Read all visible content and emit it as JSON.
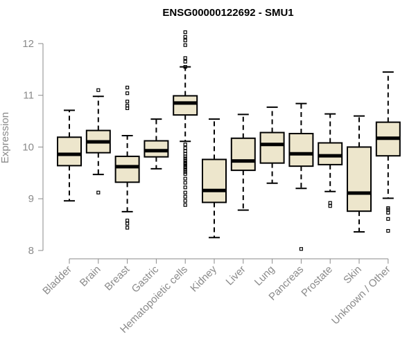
{
  "chart_data": {
    "type": "boxplot",
    "title": "ENSG00000122692 - SMU1",
    "xlabel": "",
    "ylabel": "Expression",
    "ylim": [
      8,
      12.2
    ],
    "yticks": [
      8,
      9,
      10,
      11,
      12
    ],
    "box_color": "#ede6cc",
    "categories": [
      "Bladder",
      "Brain",
      "Breast",
      "Gastric",
      "Hematopoietic cells",
      "Kidney",
      "Liver",
      "Lung",
      "Pancreas",
      "Prostate",
      "Skin",
      "Unknown / Other"
    ],
    "series": [
      {
        "name": "Bladder",
        "whisker_low": 8.96,
        "q1": 9.64,
        "median": 9.86,
        "q3": 10.19,
        "whisker_high": 10.71,
        "outliers": []
      },
      {
        "name": "Brain",
        "whisker_low": 9.47,
        "q1": 9.89,
        "median": 10.1,
        "q3": 10.32,
        "whisker_high": 10.98,
        "outliers": [
          9.12,
          11.1
        ]
      },
      {
        "name": "Breast",
        "whisker_low": 8.75,
        "q1": 9.32,
        "median": 9.62,
        "q3": 9.82,
        "whisker_high": 10.22,
        "outliers": [
          8.44,
          8.52,
          8.58,
          10.75,
          10.8,
          10.88,
          11.04,
          11.15
        ]
      },
      {
        "name": "Gastric",
        "whisker_low": 9.58,
        "q1": 9.81,
        "median": 9.93,
        "q3": 10.12,
        "whisker_high": 10.54,
        "outliers": []
      },
      {
        "name": "Hematopoietic cells",
        "whisker_low": 10.11,
        "q1": 10.62,
        "median": 10.85,
        "q3": 10.99,
        "whisker_high": 11.55,
        "outliers": [
          8.88,
          8.96,
          9.04,
          9.12,
          9.22,
          9.31,
          9.39,
          9.48,
          9.52,
          9.56,
          9.6,
          9.63,
          9.67,
          9.7,
          9.74,
          9.78,
          9.82,
          9.87,
          9.92,
          9.98,
          10.05,
          11.55,
          11.65,
          11.72,
          11.97,
          12.06,
          12.13,
          12.22
        ]
      },
      {
        "name": "Kidney",
        "whisker_low": 8.25,
        "q1": 8.93,
        "median": 9.16,
        "q3": 9.76,
        "whisker_high": 10.54,
        "outliers": []
      },
      {
        "name": "Liver",
        "whisker_low": 8.78,
        "q1": 9.55,
        "median": 9.73,
        "q3": 10.17,
        "whisker_high": 10.63,
        "outliers": []
      },
      {
        "name": "Lung",
        "whisker_low": 9.3,
        "q1": 9.69,
        "median": 10.05,
        "q3": 10.28,
        "whisker_high": 10.77,
        "outliers": []
      },
      {
        "name": "Pancreas",
        "whisker_low": 9.2,
        "q1": 9.63,
        "median": 9.87,
        "q3": 10.26,
        "whisker_high": 10.84,
        "outliers": [
          8.03
        ]
      },
      {
        "name": "Prostate",
        "whisker_low": 9.14,
        "q1": 9.66,
        "median": 9.83,
        "q3": 10.08,
        "whisker_high": 10.64,
        "outliers": [
          8.86,
          8.92
        ]
      },
      {
        "name": "Skin",
        "whisker_low": 8.36,
        "q1": 8.76,
        "median": 9.11,
        "q3": 10.0,
        "whisker_high": 10.6,
        "outliers": []
      },
      {
        "name": "Unknown / Other",
        "whisker_low": 9.01,
        "q1": 9.83,
        "median": 10.17,
        "q3": 10.48,
        "whisker_high": 11.45,
        "outliers": [
          8.38,
          8.61,
          8.73,
          8.79,
          8.82
        ]
      }
    ]
  }
}
